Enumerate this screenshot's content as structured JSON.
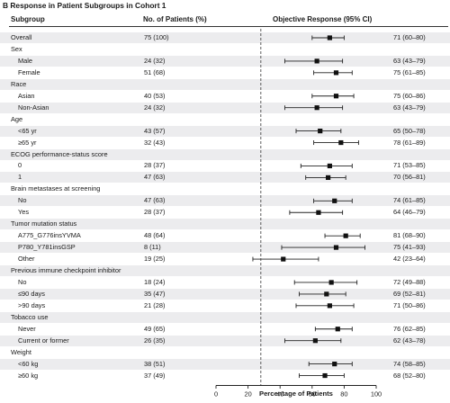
{
  "panel_title": "B  Response in Patient Subgroups in Cohort 1",
  "headers": {
    "subgroup": "Subgroup",
    "patients": "No. of Patients (%)",
    "response": "Objective Response (95% CI)"
  },
  "chart_data": {
    "type": "forest",
    "xlabel": "Percentage of Patients",
    "xlim": [
      0,
      100
    ],
    "xticks": [
      "0",
      "20",
      "40",
      "60",
      "80",
      "100"
    ],
    "reference_line": 28,
    "rows": [
      {
        "label": "Overall",
        "patients": "75 (100)",
        "ci_text": "71 (60–80)",
        "est": 71,
        "lo": 60,
        "hi": 80,
        "indent": false,
        "shade": true
      },
      {
        "label": "Sex",
        "header": true,
        "indent": false,
        "shade": false
      },
      {
        "label": "Male",
        "patients": "24 (32)",
        "ci_text": "63 (43–79)",
        "est": 63,
        "lo": 43,
        "hi": 79,
        "indent": true,
        "shade": true
      },
      {
        "label": "Female",
        "patients": "51 (68)",
        "ci_text": "75 (61–85)",
        "est": 75,
        "lo": 61,
        "hi": 85,
        "indent": true,
        "shade": false
      },
      {
        "label": "Race",
        "header": true,
        "indent": false,
        "shade": true
      },
      {
        "label": "Asian",
        "patients": "40 (53)",
        "ci_text": "75 (60–86)",
        "est": 75,
        "lo": 60,
        "hi": 86,
        "indent": true,
        "shade": false
      },
      {
        "label": "Non-Asian",
        "patients": "24 (32)",
        "ci_text": "63 (43–79)",
        "est": 63,
        "lo": 43,
        "hi": 79,
        "indent": true,
        "shade": true
      },
      {
        "label": "Age",
        "header": true,
        "indent": false,
        "shade": false
      },
      {
        "label": "<65 yr",
        "patients": "43 (57)",
        "ci_text": "65 (50–78)",
        "est": 65,
        "lo": 50,
        "hi": 78,
        "indent": true,
        "shade": true
      },
      {
        "label": "≥65 yr",
        "patients": "32 (43)",
        "ci_text": "78 (61–89)",
        "est": 78,
        "lo": 61,
        "hi": 89,
        "indent": true,
        "shade": false
      },
      {
        "label": "ECOG performance-status score",
        "header": true,
        "indent": false,
        "shade": true
      },
      {
        "label": "0",
        "patients": "28 (37)",
        "ci_text": "71 (53–85)",
        "est": 71,
        "lo": 53,
        "hi": 85,
        "indent": true,
        "shade": false
      },
      {
        "label": "1",
        "patients": "47 (63)",
        "ci_text": "70 (56–81)",
        "est": 70,
        "lo": 56,
        "hi": 81,
        "indent": true,
        "shade": true
      },
      {
        "label": "Brain metastases at screening",
        "header": true,
        "indent": false,
        "shade": false
      },
      {
        "label": "No",
        "patients": "47 (63)",
        "ci_text": "74 (61–85)",
        "est": 74,
        "lo": 61,
        "hi": 85,
        "indent": true,
        "shade": true
      },
      {
        "label": "Yes",
        "patients": "28 (37)",
        "ci_text": "64 (46–79)",
        "est": 64,
        "lo": 46,
        "hi": 79,
        "indent": true,
        "shade": false
      },
      {
        "label": "Tumor mutation status",
        "header": true,
        "indent": false,
        "shade": true
      },
      {
        "label": "A775_G776insYVMA",
        "patients": "48 (64)",
        "ci_text": "81 (68–90)",
        "est": 81,
        "lo": 68,
        "hi": 90,
        "indent": true,
        "shade": false
      },
      {
        "label": "P780_Y781insGSP",
        "patients": "8 (11)",
        "ci_text": "75 (41–93)",
        "est": 75,
        "lo": 41,
        "hi": 93,
        "indent": true,
        "shade": true
      },
      {
        "label": "Other",
        "patients": "19 (25)",
        "ci_text": "42 (23–64)",
        "est": 42,
        "lo": 23,
        "hi": 64,
        "indent": true,
        "shade": false
      },
      {
        "label": "Previous immune checkpoint inhibitor",
        "header": true,
        "indent": false,
        "shade": true
      },
      {
        "label": "No",
        "patients": "18 (24)",
        "ci_text": "72 (49–88)",
        "est": 72,
        "lo": 49,
        "hi": 88,
        "indent": true,
        "shade": false
      },
      {
        "label": "≤90 days",
        "patients": "35 (47)",
        "ci_text": "69 (52–81)",
        "est": 69,
        "lo": 52,
        "hi": 81,
        "indent": true,
        "shade": true
      },
      {
        "label": ">90 days",
        "patients": "21 (28)",
        "ci_text": "71 (50–86)",
        "est": 71,
        "lo": 50,
        "hi": 86,
        "indent": true,
        "shade": false
      },
      {
        "label": "Tobacco use",
        "header": true,
        "indent": false,
        "shade": true
      },
      {
        "label": "Never",
        "patients": "49 (65)",
        "ci_text": "76 (62–85)",
        "est": 76,
        "lo": 62,
        "hi": 85,
        "indent": true,
        "shade": false
      },
      {
        "label": "Current or former",
        "patients": "26 (35)",
        "ci_text": "62 (43–78)",
        "est": 62,
        "lo": 43,
        "hi": 78,
        "indent": true,
        "shade": true
      },
      {
        "label": "Weight",
        "header": true,
        "indent": false,
        "shade": false
      },
      {
        "label": "<60 kg",
        "patients": "38 (51)",
        "ci_text": "74 (58–85)",
        "est": 74,
        "lo": 58,
        "hi": 85,
        "indent": true,
        "shade": true
      },
      {
        "label": "≥60 kg",
        "patients": "37 (49)",
        "ci_text": "68 (52–80)",
        "est": 68,
        "lo": 52,
        "hi": 80,
        "indent": true,
        "shade": false
      }
    ]
  }
}
